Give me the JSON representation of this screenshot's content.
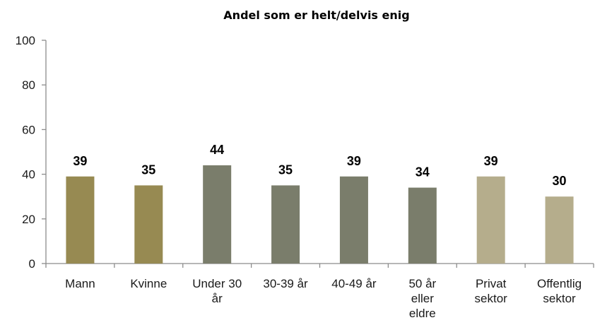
{
  "chart_data": {
    "type": "bar",
    "title": "Andel som  er helt/delvis enig",
    "xlabel": "",
    "ylabel": "",
    "ylim": [
      0,
      100
    ],
    "yticks": [
      "0",
      "20",
      "40",
      "60",
      "80",
      "100"
    ],
    "grid": false,
    "legend": "none",
    "categories": [
      [
        "Mann"
      ],
      [
        "Kvinne"
      ],
      [
        "Under 30",
        "år"
      ],
      [
        "30-39 år"
      ],
      [
        "40-49 år"
      ],
      [
        "50 år",
        "eller",
        "eldre"
      ],
      [
        "Privat",
        "sektor"
      ],
      [
        "Offentlig",
        "sektor"
      ]
    ],
    "values": [
      39,
      35,
      44,
      35,
      39,
      34,
      39,
      30
    ],
    "data_labels": [
      "39",
      "35",
      "44",
      "35",
      "39",
      "34",
      "39",
      "30"
    ],
    "bar_colors": [
      "#978a52",
      "#978a52",
      "#7a7d6b",
      "#7a7d6b",
      "#7a7d6b",
      "#7a7d6b",
      "#b5ad8c",
      "#b5ad8c"
    ]
  }
}
